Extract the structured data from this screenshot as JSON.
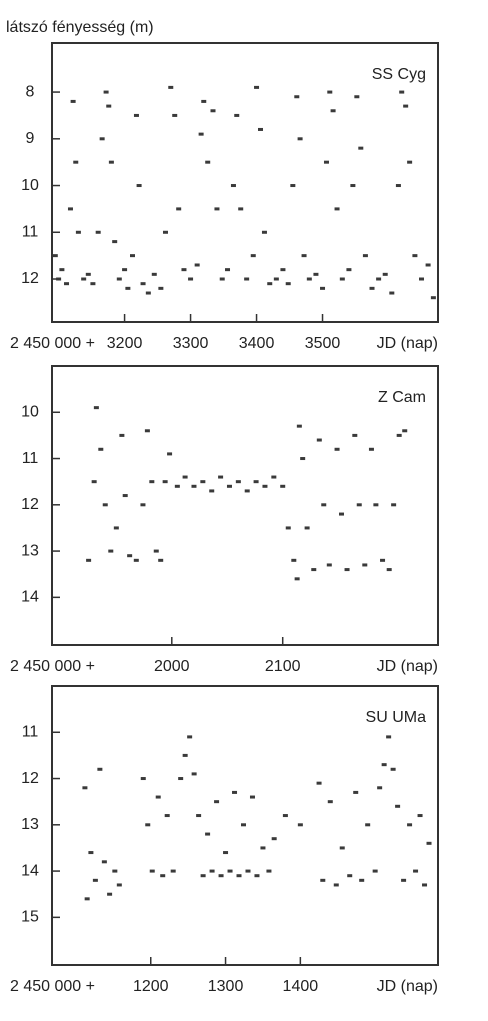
{
  "ylabel": "látszó fényesség (m)",
  "chart_data": [
    {
      "type": "scatter",
      "title": "SS Cyg",
      "x_offset_label": "2 450 000 +",
      "xlabel": "JD (nap)",
      "color": "#3a3a3a",
      "xlim": [
        3090,
        3675
      ],
      "ylim": [
        6.95,
        12.92
      ],
      "y_inverted": true,
      "xticks": [
        3200,
        3300,
        3400,
        3500
      ],
      "yticks": [
        8,
        9,
        10,
        11,
        12
      ],
      "x": [
        3095,
        3100,
        3105,
        3112,
        3118,
        3122,
        3126,
        3130,
        3138,
        3145,
        3152,
        3160,
        3166,
        3172,
        3176,
        3180,
        3185,
        3192,
        3200,
        3205,
        3212,
        3218,
        3222,
        3228,
        3236,
        3245,
        3255,
        3262,
        3270,
        3276,
        3282,
        3290,
        3300,
        3310,
        3316,
        3320,
        3326,
        3334,
        3340,
        3348,
        3356,
        3365,
        3370,
        3376,
        3385,
        3395,
        3400,
        3406,
        3412,
        3420,
        3430,
        3440,
        3448,
        3455,
        3461,
        3466,
        3472,
        3480,
        3490,
        3500,
        3506,
        3511,
        3516,
        3522,
        3530,
        3540,
        3546,
        3552,
        3558,
        3565,
        3575,
        3585,
        3595,
        3605,
        3615,
        3620,
        3626,
        3632,
        3640,
        3650,
        3660,
        3668
      ],
      "values": [
        11.5,
        12.0,
        11.8,
        12.1,
        10.5,
        8.2,
        9.5,
        11.0,
        12.0,
        11.9,
        12.1,
        11.0,
        9.0,
        8.0,
        8.3,
        9.5,
        11.2,
        12.0,
        11.8,
        12.2,
        11.5,
        8.5,
        10.0,
        12.1,
        12.3,
        11.9,
        12.2,
        11.0,
        7.9,
        8.5,
        10.5,
        11.8,
        12.0,
        11.7,
        8.9,
        8.2,
        9.5,
        8.4,
        10.5,
        12.0,
        11.8,
        10.0,
        8.5,
        10.5,
        12.0,
        11.5,
        7.9,
        8.8,
        11.0,
        12.1,
        12.0,
        11.8,
        12.1,
        10.0,
        8.1,
        9.0,
        11.5,
        12.0,
        11.9,
        12.2,
        9.5,
        8.0,
        8.4,
        10.5,
        12.0,
        11.8,
        10.0,
        8.1,
        9.2,
        11.5,
        12.2,
        12.0,
        11.9,
        12.3,
        10.0,
        8.0,
        8.3,
        9.5,
        11.5,
        12.0,
        11.7,
        12.4
      ]
    },
    {
      "type": "scatter",
      "title": "Z Cam",
      "x_offset_label": "2 450 000 +",
      "xlabel": "JD (nap)",
      "color": "#3a3a3a",
      "xlim": [
        1892,
        2240
      ],
      "ylim": [
        9.0,
        15.03
      ],
      "y_inverted": true,
      "xticks": [
        2000,
        2100
      ],
      "yticks": [
        10,
        11,
        12,
        13,
        14
      ],
      "x": [
        1925,
        1930,
        1932,
        1936,
        1940,
        1945,
        1950,
        1955,
        1958,
        1962,
        1968,
        1974,
        1978,
        1982,
        1986,
        1990,
        1994,
        1998,
        2005,
        2012,
        2020,
        2028,
        2036,
        2044,
        2052,
        2060,
        2068,
        2076,
        2084,
        2092,
        2100,
        2105,
        2110,
        2113,
        2115,
        2118,
        2122,
        2128,
        2133,
        2137,
        2142,
        2149,
        2153,
        2158,
        2165,
        2169,
        2174,
        2180,
        2184,
        2190,
        2196,
        2200,
        2205,
        2210
      ],
      "values": [
        13.2,
        11.5,
        9.9,
        10.8,
        12.0,
        13.0,
        12.5,
        10.5,
        11.8,
        13.1,
        13.2,
        12.0,
        10.4,
        11.5,
        13.0,
        13.2,
        11.5,
        10.9,
        11.6,
        11.4,
        11.6,
        11.5,
        11.7,
        11.4,
        11.6,
        11.5,
        11.7,
        11.5,
        11.6,
        11.4,
        11.6,
        12.5,
        13.2,
        13.6,
        10.3,
        11.0,
        12.5,
        13.4,
        10.6,
        12.0,
        13.3,
        10.8,
        12.2,
        13.4,
        10.5,
        12.0,
        13.3,
        10.8,
        12.0,
        13.2,
        13.4,
        12.0,
        10.5,
        10.4
      ]
    },
    {
      "type": "scatter",
      "title": "SU UMa",
      "x_offset_label": "2 450 000 +",
      "xlabel": "JD (nap)",
      "color": "#3a3a3a",
      "xlim": [
        1068,
        1584
      ],
      "ylim": [
        10.0,
        16.03
      ],
      "y_inverted": true,
      "xticks": [
        1200,
        1300,
        1400
      ],
      "yticks": [
        11,
        12,
        13,
        14,
        15
      ],
      "x": [
        1112,
        1115,
        1120,
        1126,
        1132,
        1138,
        1145,
        1152,
        1158,
        1190,
        1196,
        1202,
        1210,
        1216,
        1222,
        1230,
        1240,
        1246,
        1252,
        1258,
        1264,
        1270,
        1276,
        1282,
        1288,
        1294,
        1300,
        1306,
        1312,
        1318,
        1324,
        1330,
        1336,
        1342,
        1350,
        1358,
        1365,
        1380,
        1400,
        1425,
        1430,
        1440,
        1448,
        1456,
        1466,
        1474,
        1482,
        1490,
        1500,
        1506,
        1512,
        1518,
        1524,
        1530,
        1538,
        1546,
        1554,
        1560,
        1566,
        1572
      ],
      "values": [
        12.2,
        14.6,
        13.6,
        14.2,
        11.8,
        13.8,
        14.5,
        14.0,
        14.3,
        12.0,
        13.0,
        14.0,
        12.4,
        14.1,
        12.8,
        14.0,
        12.0,
        11.5,
        11.1,
        11.9,
        12.8,
        14.1,
        13.2,
        14.0,
        12.5,
        14.1,
        13.6,
        14.0,
        12.3,
        14.1,
        13.0,
        14.0,
        12.4,
        14.1,
        13.5,
        14.0,
        13.3,
        12.8,
        13.0,
        12.1,
        14.2,
        12.5,
        14.3,
        13.5,
        14.1,
        12.3,
        14.2,
        13.0,
        14.0,
        12.2,
        11.7,
        11.1,
        11.8,
        12.6,
        14.2,
        13.0,
        14.0,
        12.8,
        14.3,
        13.4
      ]
    }
  ]
}
